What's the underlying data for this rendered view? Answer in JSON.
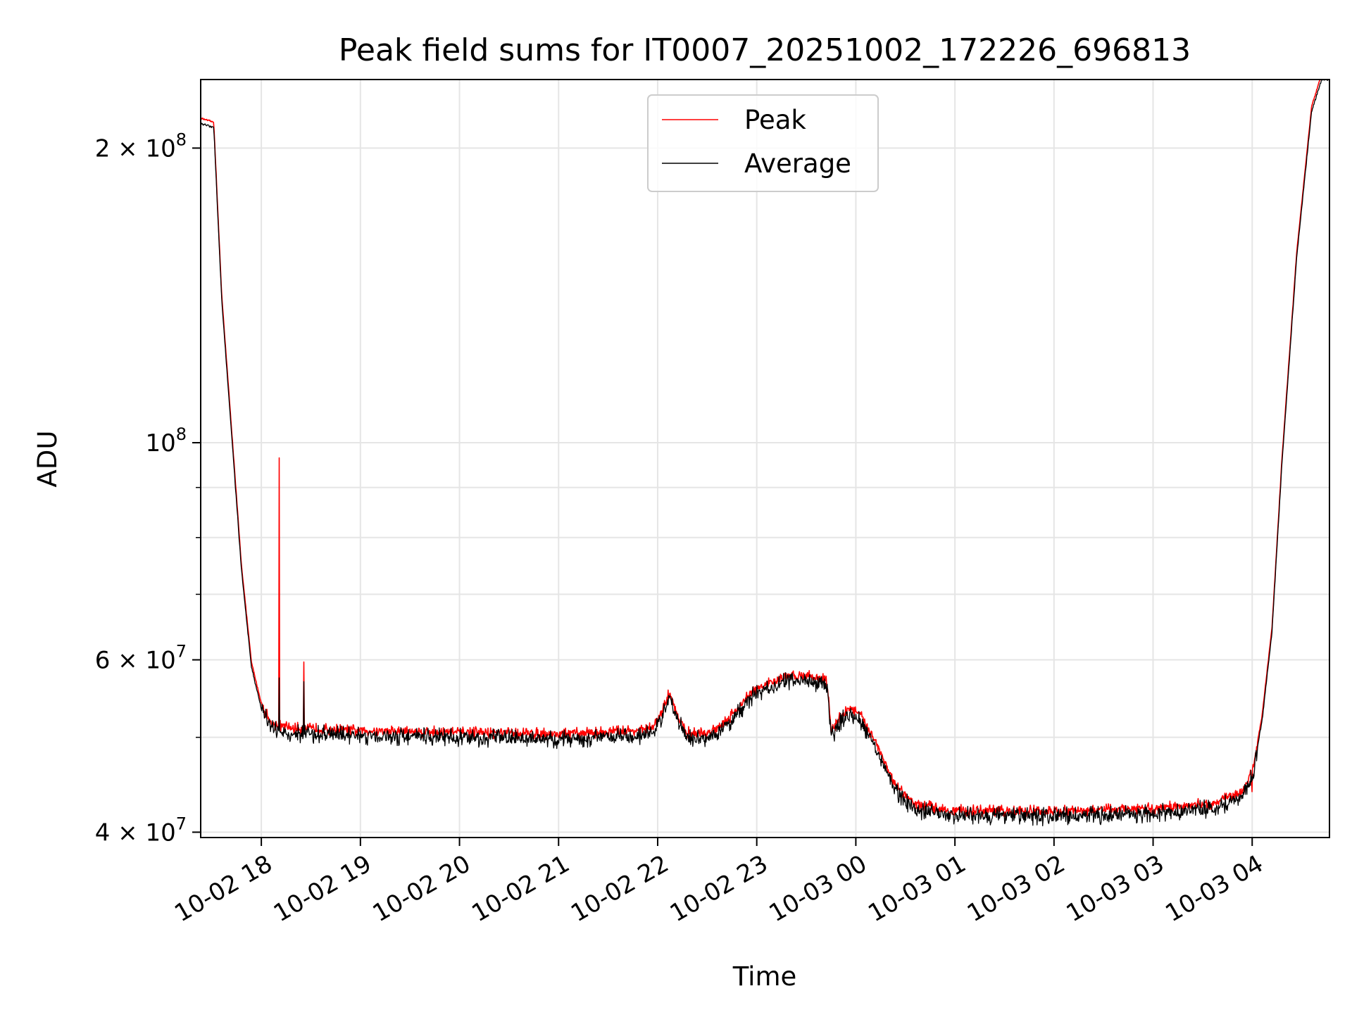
{
  "chart_data": {
    "type": "line",
    "title": "Peak field sums for IT0007_20251002_172226_696813",
    "xlabel": "Time",
    "ylabel": "ADU",
    "yscale": "log",
    "grid": true,
    "legend_position": "top-center",
    "x_unit": "hours since 10-02 17:00",
    "xlim": [
      0.388,
      11.78
    ],
    "ylim": [
      39500000,
      235000000
    ],
    "x_ticks": [
      {
        "x": 1,
        "label": "10-02 18"
      },
      {
        "x": 2,
        "label": "10-02 19"
      },
      {
        "x": 3,
        "label": "10-02 20"
      },
      {
        "x": 4,
        "label": "10-02 21"
      },
      {
        "x": 5,
        "label": "10-02 22"
      },
      {
        "x": 6,
        "label": "10-02 23"
      },
      {
        "x": 7,
        "label": "10-03 00"
      },
      {
        "x": 8,
        "label": "10-03 01"
      },
      {
        "x": 9,
        "label": "10-03 02"
      },
      {
        "x": 10,
        "label": "10-03 03"
      },
      {
        "x": 11,
        "label": "10-03 04"
      }
    ],
    "y_ticks": [
      {
        "y": 40000000,
        "mant": "4",
        "exp": "7"
      },
      {
        "y": 60000000,
        "mant": "6",
        "exp": "7"
      },
      {
        "y": 100000000,
        "mant": "",
        "exp": "8"
      },
      {
        "y": 200000000,
        "mant": "2",
        "exp": "8"
      }
    ],
    "y_minor_ticks": [
      50000000,
      70000000,
      80000000,
      90000000
    ],
    "series": [
      {
        "name": "Peak",
        "color": "#ff0000",
        "noise": 0.009,
        "offset": 1.012,
        "points": [
          [
            0.388,
            212000000
          ],
          [
            0.52,
            210000000
          ],
          [
            0.6,
            140000000
          ],
          [
            0.7,
            102000000
          ],
          [
            0.8,
            74000000
          ],
          [
            0.9,
            59000000
          ],
          [
            1.0,
            53500000
          ],
          [
            1.1,
            51000000
          ],
          [
            1.3,
            50500000
          ],
          [
            2.0,
            50200000
          ],
          [
            3.0,
            50000000
          ],
          [
            4.0,
            49800000
          ],
          [
            4.8,
            50200000
          ],
          [
            4.95,
            50500000
          ],
          [
            5.05,
            52500000
          ],
          [
            5.12,
            55000000
          ],
          [
            5.2,
            52000000
          ],
          [
            5.3,
            50000000
          ],
          [
            5.5,
            49800000
          ],
          [
            5.7,
            51500000
          ],
          [
            5.85,
            53500000
          ],
          [
            5.95,
            55000000
          ],
          [
            6.1,
            56000000
          ],
          [
            6.3,
            57000000
          ],
          [
            6.5,
            57200000
          ],
          [
            6.7,
            56500000
          ],
          [
            6.72,
            55000000
          ],
          [
            6.75,
            50000000
          ],
          [
            6.85,
            52000000
          ],
          [
            6.95,
            53000000
          ],
          [
            7.05,
            52000000
          ],
          [
            7.2,
            49000000
          ],
          [
            7.4,
            44000000
          ],
          [
            7.6,
            42200000
          ],
          [
            8.0,
            41600000
          ],
          [
            9.0,
            41500000
          ],
          [
            10.0,
            41800000
          ],
          [
            10.6,
            42300000
          ],
          [
            10.9,
            43500000
          ],
          [
            11.0,
            45500000
          ],
          [
            11.1,
            52000000
          ],
          [
            11.2,
            64000000
          ],
          [
            11.3,
            95000000
          ],
          [
            11.45,
            155000000
          ],
          [
            11.6,
            218000000
          ],
          [
            11.7,
            235000000
          ],
          [
            11.78,
            235000000
          ]
        ],
        "spikes": [
          [
            1.18,
            96500000
          ],
          [
            1.43,
            59700000
          ],
          [
            11.0,
            44000000
          ]
        ]
      },
      {
        "name": "Average",
        "color": "#000000",
        "noise": 0.014,
        "offset": 1.0,
        "points": [
          [
            0.388,
            212000000
          ],
          [
            0.52,
            210000000
          ],
          [
            0.6,
            140000000
          ],
          [
            0.7,
            102000000
          ],
          [
            0.8,
            74000000
          ],
          [
            0.9,
            59000000
          ],
          [
            1.0,
            53500000
          ],
          [
            1.1,
            51000000
          ],
          [
            1.3,
            50500000
          ],
          [
            2.0,
            50200000
          ],
          [
            3.0,
            50000000
          ],
          [
            4.0,
            49800000
          ],
          [
            4.8,
            50200000
          ],
          [
            4.95,
            50500000
          ],
          [
            5.05,
            52500000
          ],
          [
            5.12,
            55000000
          ],
          [
            5.2,
            52000000
          ],
          [
            5.3,
            50000000
          ],
          [
            5.5,
            49800000
          ],
          [
            5.7,
            51500000
          ],
          [
            5.85,
            53500000
          ],
          [
            5.95,
            55000000
          ],
          [
            6.1,
            56000000
          ],
          [
            6.3,
            57000000
          ],
          [
            6.5,
            57200000
          ],
          [
            6.7,
            56500000
          ],
          [
            6.72,
            55000000
          ],
          [
            6.75,
            50000000
          ],
          [
            6.85,
            52000000
          ],
          [
            6.95,
            53000000
          ],
          [
            7.05,
            52000000
          ],
          [
            7.2,
            49000000
          ],
          [
            7.4,
            44000000
          ],
          [
            7.6,
            42200000
          ],
          [
            8.0,
            41600000
          ],
          [
            9.0,
            41500000
          ],
          [
            10.0,
            41800000
          ],
          [
            10.6,
            42300000
          ],
          [
            10.9,
            43500000
          ],
          [
            11.0,
            45500000
          ],
          [
            11.1,
            52000000
          ],
          [
            11.2,
            64000000
          ],
          [
            11.3,
            95000000
          ],
          [
            11.45,
            155000000
          ],
          [
            11.6,
            218000000
          ],
          [
            11.7,
            235000000
          ],
          [
            11.78,
            235000000
          ]
        ],
        "spikes": [
          [
            1.18,
            57500000
          ],
          [
            1.43,
            57000000
          ]
        ]
      }
    ]
  }
}
